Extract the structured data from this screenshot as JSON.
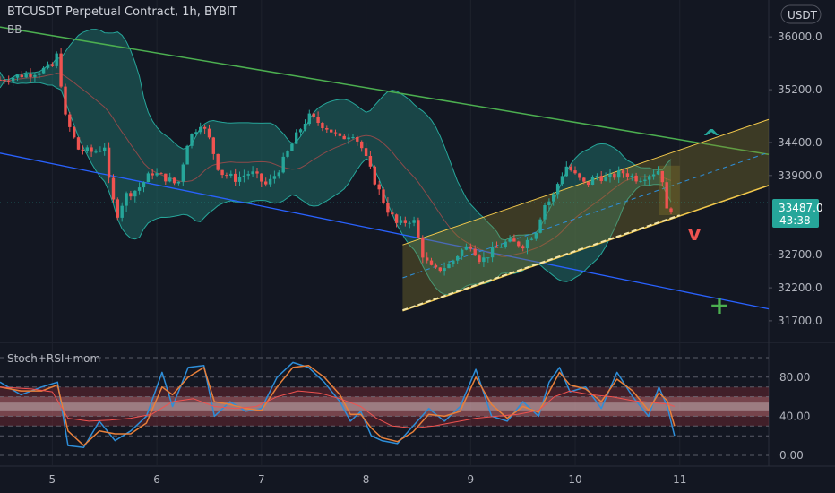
{
  "header": {
    "title": "BTCUSDT Perpetual Contract, 1h, BYBIT",
    "indicator": "BB"
  },
  "currency_button": "USDT",
  "oscillator_label": "Stoch+RSI+mom",
  "colors": {
    "background": "#131722",
    "up": "#26a69a",
    "down": "#ef5350",
    "bb_fill": "#1f6b66",
    "bb_line": "#26a69a",
    "basis": "#8d4a4a",
    "green_trend": "#4caf50",
    "blue_trend": "#2962ff",
    "channel_fill": "#8a7a2a",
    "channel_line": "#f2c84b",
    "channel_mid": "#2e8ed8",
    "price_tag": "#26a69a",
    "stoch_k": "#2e8ed8",
    "stoch_d": "#e8803a",
    "mom": "#ef5350"
  },
  "markers": {
    "up_arrow": "^",
    "down_arrow": "v",
    "plus": "+"
  },
  "price_tag": {
    "price": "33487.0",
    "countdown": "43:38"
  },
  "chart_data": [
    {
      "type": "candlestick",
      "title": "BTCUSDT Perpetual Contract, 1h, BYBIT",
      "y_ticks": [
        36000,
        35200,
        34400,
        33900,
        32700,
        32200,
        31700
      ],
      "y_tick_labels": [
        "36000.0",
        "35200.0",
        "34400.0",
        "33900.0",
        "32700.0",
        "32200.0",
        "31700.0"
      ],
      "x_ticks": [
        5,
        6,
        7,
        8,
        9,
        10,
        11
      ],
      "x_tick_labels": [
        "5",
        "6",
        "7",
        "8",
        "9",
        "10",
        "11"
      ],
      "last_price": 33487.0,
      "close_path": [
        [
          4.5,
          35350
        ],
        [
          4.8,
          35450
        ],
        [
          5.0,
          35550
        ],
        [
          5.05,
          35750
        ],
        [
          5.12,
          34800
        ],
        [
          5.25,
          34300
        ],
        [
          5.4,
          34250
        ],
        [
          5.5,
          34350
        ],
        [
          5.55,
          33700
        ],
        [
          5.62,
          33300
        ],
        [
          5.7,
          33600
        ],
        [
          5.82,
          33700
        ],
        [
          5.95,
          33950
        ],
        [
          6.1,
          33850
        ],
        [
          6.2,
          33750
        ],
        [
          6.3,
          34450
        ],
        [
          6.42,
          34700
        ],
        [
          6.5,
          34450
        ],
        [
          6.6,
          33950
        ],
        [
          6.75,
          33850
        ],
        [
          6.9,
          33950
        ],
        [
          7.05,
          33750
        ],
        [
          7.15,
          33950
        ],
        [
          7.25,
          34250
        ],
        [
          7.35,
          34550
        ],
        [
          7.45,
          34800
        ],
        [
          7.55,
          34700
        ],
        [
          7.65,
          34600
        ],
        [
          7.75,
          34450
        ],
        [
          7.87,
          34550
        ],
        [
          7.95,
          34350
        ],
        [
          8.05,
          33950
        ],
        [
          8.1,
          33750
        ],
        [
          8.2,
          33400
        ],
        [
          8.3,
          33150
        ],
        [
          8.45,
          33250
        ],
        [
          8.55,
          32650
        ],
        [
          8.65,
          32450
        ],
        [
          8.8,
          32550
        ],
        [
          8.9,
          32750
        ],
        [
          9.0,
          32850
        ],
        [
          9.1,
          32600
        ],
        [
          9.2,
          32750
        ],
        [
          9.35,
          32900
        ],
        [
          9.5,
          32850
        ],
        [
          9.62,
          33050
        ],
        [
          9.7,
          33450
        ],
        [
          9.78,
          33550
        ],
        [
          9.85,
          33850
        ],
        [
          9.92,
          34050
        ],
        [
          10.0,
          33900
        ],
        [
          10.1,
          33750
        ],
        [
          10.2,
          33900
        ],
        [
          10.3,
          33850
        ],
        [
          10.45,
          33950
        ],
        [
          10.6,
          33850
        ],
        [
          10.75,
          33950
        ],
        [
          10.82,
          34000
        ],
        [
          10.88,
          33300
        ],
        [
          10.95,
          33487
        ]
      ]
    },
    {
      "type": "line",
      "title": "Stoch+RSI+mom",
      "y_ticks": [
        80,
        40,
        0
      ],
      "y_tick_labels": [
        "80.00",
        "40.00",
        "0.00"
      ],
      "series": [
        {
          "color": "#2e8ed8",
          "x": [
            4.5,
            4.7,
            4.9,
            5.05,
            5.15,
            5.3,
            5.45,
            5.6,
            5.75,
            5.9,
            6.05,
            6.15,
            6.3,
            6.45,
            6.55,
            6.7,
            6.85,
            7.0,
            7.15,
            7.3,
            7.45,
            7.6,
            7.75,
            7.85,
            7.95,
            8.05,
            8.15,
            8.3,
            8.45,
            8.6,
            8.75,
            8.9,
            9.05,
            9.2,
            9.35,
            9.5,
            9.65,
            9.75,
            9.85,
            9.95,
            10.1,
            10.25,
            10.4,
            10.55,
            10.7,
            10.8,
            10.88,
            10.95
          ],
          "values": [
            75,
            62,
            70,
            75,
            10,
            8,
            35,
            15,
            25,
            40,
            85,
            50,
            90,
            92,
            40,
            55,
            45,
            48,
            80,
            95,
            90,
            75,
            55,
            35,
            45,
            20,
            15,
            12,
            30,
            48,
            35,
            50,
            88,
            40,
            35,
            55,
            40,
            75,
            90,
            65,
            70,
            48,
            85,
            60,
            40,
            70,
            50,
            20
          ]
        },
        {
          "color": "#e8803a",
          "x": [
            4.5,
            4.7,
            4.9,
            5.05,
            5.15,
            5.3,
            5.45,
            5.6,
            5.75,
            5.9,
            6.05,
            6.15,
            6.3,
            6.45,
            6.55,
            6.7,
            6.85,
            7.0,
            7.15,
            7.3,
            7.45,
            7.6,
            7.75,
            7.85,
            7.95,
            8.05,
            8.15,
            8.3,
            8.45,
            8.6,
            8.75,
            8.9,
            9.05,
            9.2,
            9.35,
            9.5,
            9.65,
            9.75,
            9.85,
            9.95,
            10.1,
            10.25,
            10.4,
            10.55,
            10.7,
            10.8,
            10.88,
            10.95
          ],
          "values": [
            70,
            66,
            66,
            72,
            25,
            10,
            25,
            22,
            22,
            33,
            70,
            62,
            80,
            90,
            55,
            52,
            48,
            46,
            70,
            90,
            92,
            80,
            62,
            42,
            42,
            28,
            18,
            14,
            24,
            42,
            40,
            45,
            80,
            52,
            38,
            50,
            44,
            65,
            85,
            72,
            68,
            55,
            78,
            66,
            46,
            64,
            56,
            30
          ]
        },
        {
          "color": "#ef5350",
          "x": [
            4.5,
            4.8,
            5.0,
            5.15,
            5.35,
            5.55,
            5.75,
            5.95,
            6.15,
            6.35,
            6.55,
            6.75,
            6.95,
            7.15,
            7.35,
            7.55,
            7.75,
            7.95,
            8.1,
            8.25,
            8.45,
            8.65,
            8.85,
            9.05,
            9.25,
            9.45,
            9.65,
            9.8,
            9.95,
            10.15,
            10.35,
            10.55,
            10.75,
            10.9,
            10.95
          ],
          "values": [
            70,
            68,
            65,
            38,
            35,
            36,
            38,
            42,
            55,
            58,
            50,
            48,
            50,
            60,
            66,
            64,
            58,
            50,
            38,
            30,
            28,
            30,
            34,
            38,
            40,
            42,
            46,
            60,
            66,
            62,
            60,
            56,
            54,
            52,
            50
          ]
        }
      ]
    }
  ]
}
